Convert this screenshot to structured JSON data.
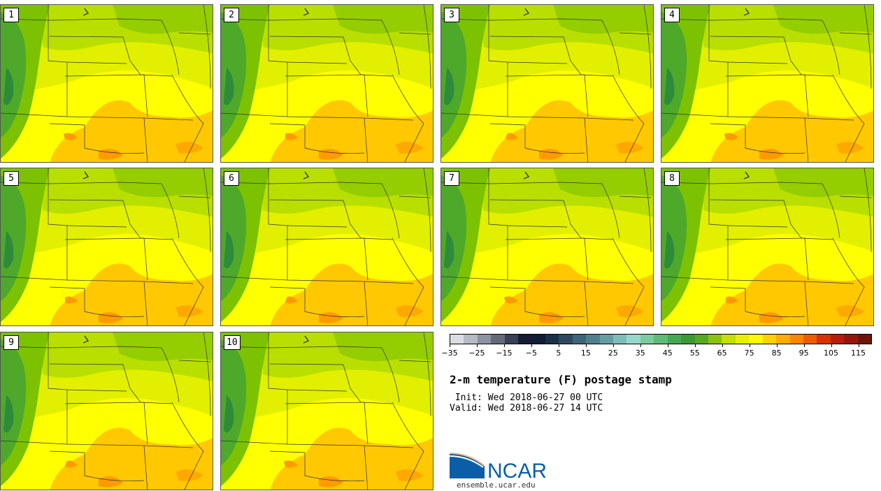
{
  "members": [
    {
      "label": "1"
    },
    {
      "label": "2"
    },
    {
      "label": "3"
    },
    {
      "label": "4"
    },
    {
      "label": "5"
    },
    {
      "label": "6"
    },
    {
      "label": "7"
    },
    {
      "label": "8"
    },
    {
      "label": "9"
    },
    {
      "label": "10"
    }
  ],
  "colorbar": {
    "colors": [
      "#d9dde3",
      "#b5bac3",
      "#8d93a0",
      "#65697a",
      "#3a3f55",
      "#151c33",
      "#0f1d35",
      "#1c3048",
      "#2d4860",
      "#3f6378",
      "#527f8e",
      "#669da3",
      "#7dbcb8",
      "#96d8cc",
      "#7bcca0",
      "#5fba78",
      "#47a854",
      "#3c9a33",
      "#56a81e",
      "#8bc30e",
      "#c6df05",
      "#e8ef00",
      "#fff800",
      "#ffd000",
      "#ffad00",
      "#ff8600",
      "#f05c00",
      "#d83200",
      "#b81c0a",
      "#96160d",
      "#6d1509"
    ],
    "tick_labels": [
      "−35",
      "−25",
      "−15",
      "−5",
      "5",
      "15",
      "25",
      "35",
      "45",
      "55",
      "65",
      "75",
      "85",
      "95",
      "105",
      "115"
    ]
  },
  "title": "2-m temperature (F) postage stamp",
  "init": " Init: Wed 2018-06-27 00 UTC",
  "valid": "Valid: Wed 2018-06-27 14 UTC",
  "logo_text": "NCAR",
  "url": "ensemble.ucar.edu",
  "map_colors": {
    "warm": "#ffc800",
    "hot": "#ff9a00",
    "mild": "#ffff00",
    "cool": "#e2f000",
    "cooler": "#b2dc00",
    "cold": "#7cc200",
    "mountain": "#4ea82a"
  }
}
